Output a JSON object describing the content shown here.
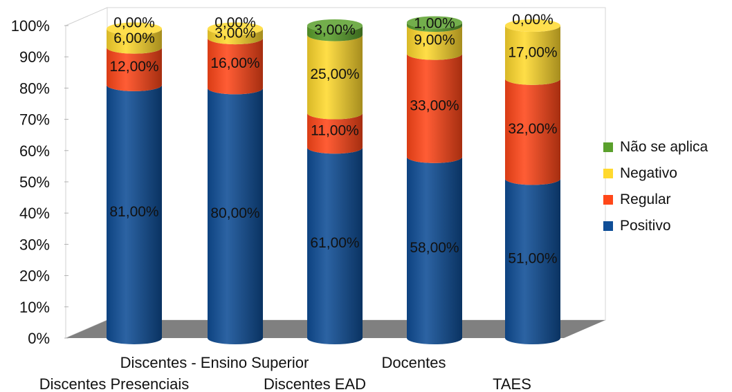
{
  "chart_data": {
    "type": "bar",
    "stacked": true,
    "style": "3d-cylinder",
    "categories": [
      "Discentes Presenciais",
      "Discentes - Ensino Superior",
      "Discentes EAD",
      "Docentes",
      "TAES"
    ],
    "series": [
      {
        "name": "Positivo",
        "color": "#0f4e97",
        "values": [
          81,
          80,
          61,
          58,
          51
        ],
        "labels": [
          "81,00%",
          "80,00%",
          "61,00%",
          "58,00%",
          "51,00%"
        ]
      },
      {
        "name": "Regular",
        "color": "#ff4719",
        "values": [
          12,
          16,
          11,
          33,
          32
        ],
        "labels": [
          "12,00%",
          "16,00%",
          "11,00%",
          "33,00%",
          "32,00%"
        ]
      },
      {
        "name": "Negativo",
        "color": "#ffd92e",
        "values": [
          6,
          3,
          25,
          9,
          17
        ],
        "labels": [
          "6,00%",
          "3,00%",
          "25,00%",
          "9,00%",
          "17,00%"
        ]
      },
      {
        "name": "Não se aplica",
        "color": "#5aa02c",
        "values": [
          0,
          0,
          3,
          1,
          0
        ],
        "labels": [
          "0,00%",
          "0,00%",
          "3,00%",
          "1,00%",
          "0,00%"
        ]
      }
    ],
    "y_ticks": [
      "0%",
      "10%",
      "20%",
      "30%",
      "40%",
      "50%",
      "60%",
      "70%",
      "80%",
      "90%",
      "100%"
    ],
    "ylim": [
      0,
      100
    ],
    "title": "",
    "xlabel": "",
    "ylabel": "",
    "legend": {
      "position": "right",
      "order": [
        "Não se aplica",
        "Negativo",
        "Regular",
        "Positivo"
      ]
    },
    "floor_color": "#808080",
    "grid": false
  }
}
